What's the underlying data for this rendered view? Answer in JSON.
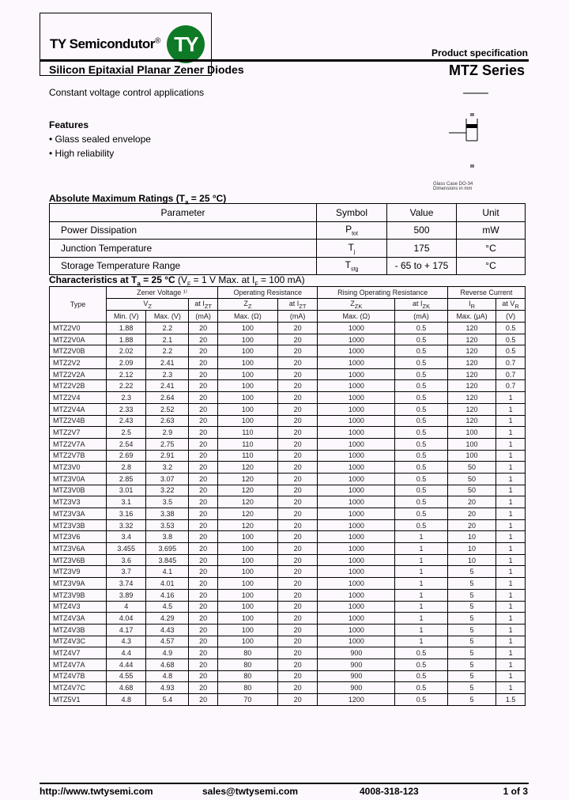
{
  "header": {
    "logo_text": "TY Semicondutor",
    "logo_mark": "®",
    "logo_circle": "TY",
    "product_spec": "Product specification",
    "title": "Silicon Epitaxial Planar Zener Diodes",
    "series": "MTZ Series",
    "subtitle": "Constant voltage control applications",
    "brand_color": "#0f7a26"
  },
  "features": {
    "heading": "Features",
    "items": [
      "• Glass sealed envelope",
      "• High reliability"
    ]
  },
  "package": {
    "caption_1": "Glass Case DO-34",
    "caption_2": "Dimensions in mm"
  },
  "abs_max": {
    "heading": "Absolute Maximum Ratings (T",
    "heading_sub": "a",
    "heading_end": " = 25 °C)",
    "columns": [
      "Parameter",
      "Symbol",
      "Value",
      "Unit"
    ],
    "rows": [
      [
        "Power Dissipation",
        "P",
        "tot",
        "500",
        "mW"
      ],
      [
        "Junction Temperature",
        "T",
        "j",
        "175",
        "°C"
      ],
      [
        "Storage Temperature Range",
        "T",
        "stg",
        "- 65 to + 175",
        "°C"
      ]
    ]
  },
  "characteristics": {
    "heading_bold": "Characteristics at T",
    "heading_sub": "a",
    "heading_bold2": " = 25 °C",
    "heading_rest": " (V",
    "vf_sub": "F",
    "heading_rest2": " = 1 V Max. at I",
    "if_sub": "F",
    "heading_rest3": " = 100 mA)",
    "groups": [
      "Type",
      "Zener Voltage ¹⁾",
      "Operating Resistance",
      "Rising Operating Resistance",
      "Reverse Current"
    ],
    "sub": [
      "V",
      "Z",
      "at I",
      "ZT",
      "Z",
      "Z",
      "at I",
      "ZT",
      "Z",
      "ZK",
      "at I",
      "ZK",
      "I",
      "R",
      "at V",
      "R"
    ],
    "units": [
      "Min. (V)",
      "Max. (V)",
      "(mA)",
      "Max. (Ω)",
      "(mA)",
      "Max. (Ω)",
      "(mA)",
      "Max. (μA)",
      "(V)"
    ],
    "rows": [
      [
        "MTZ2V0",
        "1.88",
        "2.2",
        "20",
        "100",
        "20",
        "1000",
        "0.5",
        "120",
        "0.5"
      ],
      [
        "MTZ2V0A",
        "1.88",
        "2.1",
        "20",
        "100",
        "20",
        "1000",
        "0.5",
        "120",
        "0.5"
      ],
      [
        "MTZ2V0B",
        "2.02",
        "2.2",
        "20",
        "100",
        "20",
        "1000",
        "0.5",
        "120",
        "0.5"
      ],
      [
        "MTZ2V2",
        "2.09",
        "2.41",
        "20",
        "100",
        "20",
        "1000",
        "0.5",
        "120",
        "0.7"
      ],
      [
        "MTZ2V2A",
        "2.12",
        "2.3",
        "20",
        "100",
        "20",
        "1000",
        "0.5",
        "120",
        "0.7"
      ],
      [
        "MTZ2V2B",
        "2.22",
        "2.41",
        "20",
        "100",
        "20",
        "1000",
        "0.5",
        "120",
        "0.7"
      ],
      [
        "MTZ2V4",
        "2.3",
        "2.64",
        "20",
        "100",
        "20",
        "1000",
        "0.5",
        "120",
        "1"
      ],
      [
        "MTZ2V4A",
        "2.33",
        "2.52",
        "20",
        "100",
        "20",
        "1000",
        "0.5",
        "120",
        "1"
      ],
      [
        "MTZ2V4B",
        "2.43",
        "2.63",
        "20",
        "100",
        "20",
        "1000",
        "0.5",
        "120",
        "1"
      ],
      [
        "MTZ2V7",
        "2.5",
        "2.9",
        "20",
        "110",
        "20",
        "1000",
        "0.5",
        "100",
        "1"
      ],
      [
        "MTZ2V7A",
        "2.54",
        "2.75",
        "20",
        "110",
        "20",
        "1000",
        "0.5",
        "100",
        "1"
      ],
      [
        "MTZ2V7B",
        "2.69",
        "2.91",
        "20",
        "110",
        "20",
        "1000",
        "0.5",
        "100",
        "1"
      ],
      [
        "MTZ3V0",
        "2.8",
        "3.2",
        "20",
        "120",
        "20",
        "1000",
        "0.5",
        "50",
        "1"
      ],
      [
        "MTZ3V0A",
        "2.85",
        "3.07",
        "20",
        "120",
        "20",
        "1000",
        "0.5",
        "50",
        "1"
      ],
      [
        "MTZ3V0B",
        "3.01",
        "3.22",
        "20",
        "120",
        "20",
        "1000",
        "0.5",
        "50",
        "1"
      ],
      [
        "MTZ3V3",
        "3.1",
        "3.5",
        "20",
        "120",
        "20",
        "1000",
        "0.5",
        "20",
        "1"
      ],
      [
        "MTZ3V3A",
        "3.16",
        "3.38",
        "20",
        "120",
        "20",
        "1000",
        "0.5",
        "20",
        "1"
      ],
      [
        "MTZ3V3B",
        "3.32",
        "3.53",
        "20",
        "120",
        "20",
        "1000",
        "0.5",
        "20",
        "1"
      ],
      [
        "MTZ3V6",
        "3.4",
        "3.8",
        "20",
        "100",
        "20",
        "1000",
        "1",
        "10",
        "1"
      ],
      [
        "MTZ3V6A",
        "3.455",
        "3.695",
        "20",
        "100",
        "20",
        "1000",
        "1",
        "10",
        "1"
      ],
      [
        "MTZ3V6B",
        "3.6",
        "3.845",
        "20",
        "100",
        "20",
        "1000",
        "1",
        "10",
        "1"
      ],
      [
        "MTZ3V9",
        "3.7",
        "4.1",
        "20",
        "100",
        "20",
        "1000",
        "1",
        "5",
        "1"
      ],
      [
        "MTZ3V9A",
        "3.74",
        "4.01",
        "20",
        "100",
        "20",
        "1000",
        "1",
        "5",
        "1"
      ],
      [
        "MTZ3V9B",
        "3.89",
        "4.16",
        "20",
        "100",
        "20",
        "1000",
        "1",
        "5",
        "1"
      ],
      [
        "MTZ4V3",
        "4",
        "4.5",
        "20",
        "100",
        "20",
        "1000",
        "1",
        "5",
        "1"
      ],
      [
        "MTZ4V3A",
        "4.04",
        "4.29",
        "20",
        "100",
        "20",
        "1000",
        "1",
        "5",
        "1"
      ],
      [
        "MTZ4V3B",
        "4.17",
        "4.43",
        "20",
        "100",
        "20",
        "1000",
        "1",
        "5",
        "1"
      ],
      [
        "MTZ4V3C",
        "4.3",
        "4.57",
        "20",
        "100",
        "20",
        "1000",
        "1",
        "5",
        "1"
      ],
      [
        "MTZ4V7",
        "4.4",
        "4.9",
        "20",
        "80",
        "20",
        "900",
        "0.5",
        "5",
        "1"
      ],
      [
        "MTZ4V7A",
        "4.44",
        "4.68",
        "20",
        "80",
        "20",
        "900",
        "0.5",
        "5",
        "1"
      ],
      [
        "MTZ4V7B",
        "4.55",
        "4.8",
        "20",
        "80",
        "20",
        "900",
        "0.5",
        "5",
        "1"
      ],
      [
        "MTZ4V7C",
        "4.68",
        "4.93",
        "20",
        "80",
        "20",
        "900",
        "0.5",
        "5",
        "1"
      ],
      [
        "MTZ5V1",
        "4.8",
        "5.4",
        "20",
        "70",
        "20",
        "1200",
        "0.5",
        "5",
        "1.5"
      ]
    ]
  },
  "footer": {
    "website": "http://www.twtysemi.com",
    "email": "sales@twtysemi.com",
    "phone": "4008-318-123",
    "page": "1 of 3"
  }
}
